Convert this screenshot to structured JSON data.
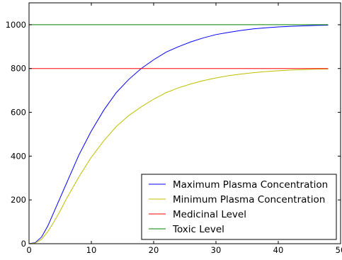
{
  "chart_data": {
    "type": "line",
    "title": "",
    "xlabel": "",
    "ylabel": "",
    "xlim": [
      0,
      50
    ],
    "ylim": [
      0,
      1100
    ],
    "x_ticks": [
      0,
      10,
      20,
      30,
      40,
      50
    ],
    "y_ticks": [
      0,
      200,
      400,
      600,
      800,
      1000
    ],
    "x_tick_labels": [
      "0",
      "10",
      "20",
      "30",
      "40",
      "50"
    ],
    "y_tick_labels": [
      "0",
      "200",
      "400",
      "600",
      "800",
      "1000"
    ],
    "grid": false,
    "legend_position": "lower-right",
    "series": [
      {
        "name": "Maximum Plasma Concentration",
        "color": "#0000ff",
        "x": [
          0,
          1,
          2,
          3,
          4,
          5,
          6,
          8,
          10,
          12,
          14,
          16,
          18,
          20,
          22,
          24,
          26,
          28,
          30,
          32,
          34,
          36,
          38,
          40,
          42,
          44,
          46,
          48
        ],
        "y": [
          0,
          5,
          30,
          80,
          145,
          210,
          275,
          405,
          515,
          610,
          690,
          750,
          800,
          840,
          875,
          900,
          922,
          940,
          955,
          965,
          974,
          981,
          986,
          990,
          993,
          995,
          997,
          998
        ]
      },
      {
        "name": "Minimum Plasma Concentration",
        "color": "#bfbf00",
        "x": [
          0,
          1,
          2,
          3,
          4,
          5,
          6,
          8,
          10,
          12,
          14,
          16,
          18,
          20,
          22,
          24,
          26,
          28,
          30,
          32,
          34,
          36,
          38,
          40,
          42,
          44,
          46,
          48
        ],
        "y": [
          0,
          3,
          20,
          55,
          100,
          150,
          205,
          305,
          395,
          470,
          535,
          585,
          625,
          660,
          690,
          712,
          730,
          745,
          757,
          767,
          775,
          781,
          786,
          790,
          793,
          795,
          797,
          798
        ]
      },
      {
        "name": "Medicinal Level",
        "color": "#ff0000",
        "x": [
          0,
          48
        ],
        "y": [
          800,
          800
        ]
      },
      {
        "name": "Toxic Level",
        "color": "#008000",
        "x": [
          0,
          48
        ],
        "y": [
          1000,
          1000
        ]
      }
    ]
  }
}
